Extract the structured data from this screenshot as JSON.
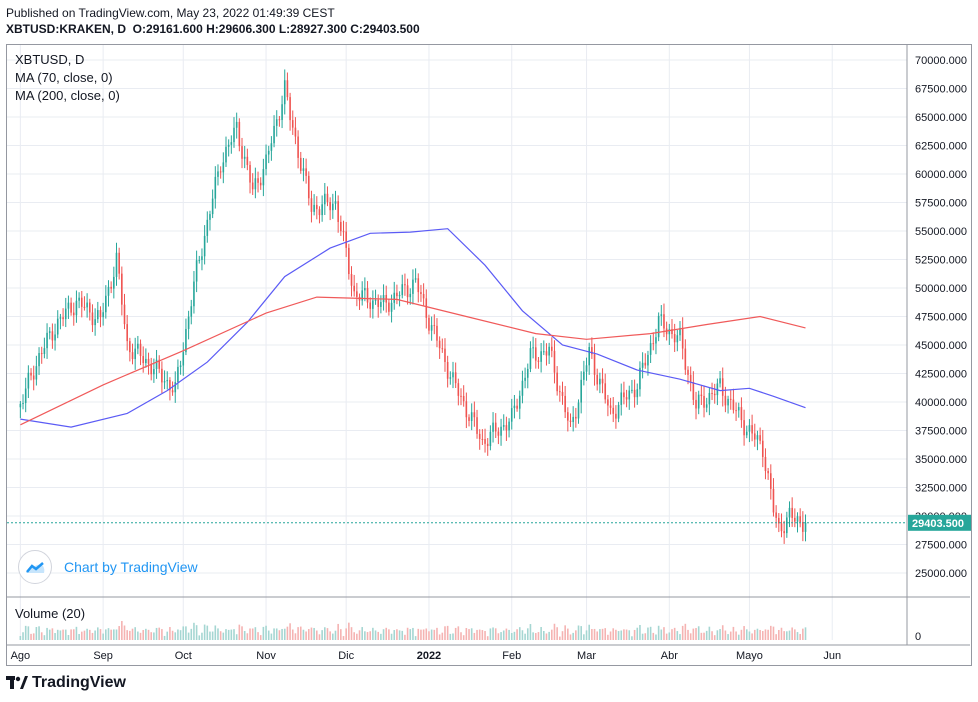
{
  "header": {
    "published": "Published on TradingView.com, May 23, 2022 01:49:39 CEST",
    "symbol_line": "XBTUSD:KRAKEN, D",
    "o_label": "O:",
    "o_value": "29161.600",
    "h_label": "H:",
    "h_value": "29606.300",
    "l_label": "L:",
    "l_value": "28927.300",
    "c_label": "C:",
    "c_value": "29403.500"
  },
  "legend": {
    "title": "XBTUSD, D",
    "ma1": "MA (70, close, 0)",
    "ma2": "MA (200, close, 0)"
  },
  "watermark": {
    "text": "Chart by TradingView"
  },
  "volume_label": "Volume (20)",
  "footer": {
    "brand": "TradingView"
  },
  "colors": {
    "up": "#26a69a",
    "down": "#ef5350",
    "ma70": "#5b5bf5",
    "ma200": "#f05a5a",
    "last_price": "#26a69a",
    "grid": "#e9ecf2"
  },
  "chart_data": {
    "type": "candlestick",
    "symbol": "XBTUSD",
    "interval": "D",
    "ylim": [
      25000,
      70000
    ],
    "yticks": [
      "70000.000",
      "67500.000",
      "65000.000",
      "62500.000",
      "60000.000",
      "57500.000",
      "55000.000",
      "52500.000",
      "50000.000",
      "47500.000",
      "45000.000",
      "42500.000",
      "40000.000",
      "37500.000",
      "35000.000",
      "32500.000",
      "30000.000",
      "27500.000",
      "25000.000"
    ],
    "xticks": [
      "Ago",
      "Sep",
      "Oct",
      "Nov",
      "Dic",
      "2022",
      "Feb",
      "Mar",
      "Abr",
      "Mayo",
      "Jun"
    ],
    "last_price": 29403.5,
    "last_price_label": "29403.500",
    "volume_tick": "0",
    "close_anchors": [
      [
        "2021-08-01",
        39800
      ],
      [
        "2021-08-08",
        44000
      ],
      [
        "2021-08-15",
        47000
      ],
      [
        "2021-08-22",
        48800
      ],
      [
        "2021-08-31",
        47200
      ],
      [
        "2021-09-06",
        52500
      ],
      [
        "2021-09-10",
        45000
      ],
      [
        "2021-09-20",
        43000
      ],
      [
        "2021-09-28",
        41000
      ],
      [
        "2021-10-06",
        51500
      ],
      [
        "2021-10-15",
        61000
      ],
      [
        "2021-10-21",
        64000
      ],
      [
        "2021-10-27",
        58500
      ],
      [
        "2021-11-01",
        61000
      ],
      [
        "2021-11-08",
        67500
      ],
      [
        "2021-11-10",
        65000
      ],
      [
        "2021-11-18",
        57000
      ],
      [
        "2021-11-27",
        57500
      ],
      [
        "2021-12-04",
        49500
      ],
      [
        "2021-12-15",
        48500
      ],
      [
        "2021-12-27",
        50500
      ],
      [
        "2022-01-01",
        47200
      ],
      [
        "2022-01-10",
        41800
      ],
      [
        "2022-01-21",
        36500
      ],
      [
        "2022-02-01",
        38500
      ],
      [
        "2022-02-08",
        44000
      ],
      [
        "2022-02-15",
        44500
      ],
      [
        "2022-02-23",
        37500
      ],
      [
        "2022-03-02",
        44400
      ],
      [
        "2022-03-10",
        39000
      ],
      [
        "2022-03-20",
        41500
      ],
      [
        "2022-03-28",
        47000
      ],
      [
        "2022-04-05",
        45500
      ],
      [
        "2022-04-11",
        39600
      ],
      [
        "2022-04-20",
        41300
      ],
      [
        "2022-04-30",
        37700
      ],
      [
        "2022-05-06",
        36000
      ],
      [
        "2022-05-10",
        30500
      ],
      [
        "2022-05-12",
        28900
      ],
      [
        "2022-05-16",
        29900
      ],
      [
        "2022-05-22",
        29403
      ]
    ],
    "series": [
      {
        "name": "MA (70, close, 0)",
        "values": [
          [
            "2021-08-01",
            38500
          ],
          [
            "2021-08-20",
            37800
          ],
          [
            "2021-09-10",
            39000
          ],
          [
            "2021-09-25",
            41000
          ],
          [
            "2021-10-10",
            43500
          ],
          [
            "2021-10-25",
            47000
          ],
          [
            "2021-11-08",
            51000
          ],
          [
            "2021-11-25",
            53500
          ],
          [
            "2021-12-10",
            54800
          ],
          [
            "2021-12-25",
            54900
          ],
          [
            "2022-01-08",
            55200
          ],
          [
            "2022-01-22",
            52000
          ],
          [
            "2022-02-05",
            48000
          ],
          [
            "2022-02-20",
            45000
          ],
          [
            "2022-03-05",
            44200
          ],
          [
            "2022-03-20",
            42800
          ],
          [
            "2022-04-05",
            42000
          ],
          [
            "2022-04-20",
            41000
          ],
          [
            "2022-05-01",
            41200
          ],
          [
            "2022-05-10",
            40500
          ],
          [
            "2022-05-22",
            39500
          ]
        ]
      },
      {
        "name": "MA (200, close, 0)",
        "values": [
          [
            "2021-08-01",
            38000
          ],
          [
            "2021-09-01",
            41500
          ],
          [
            "2021-10-01",
            44500
          ],
          [
            "2021-11-01",
            47800
          ],
          [
            "2021-11-20",
            49200
          ],
          [
            "2021-12-20",
            49000
          ],
          [
            "2022-01-15",
            47500
          ],
          [
            "2022-02-10",
            46000
          ],
          [
            "2022-03-01",
            45500
          ],
          [
            "2022-03-25",
            46000
          ],
          [
            "2022-04-15",
            46800
          ],
          [
            "2022-05-05",
            47500
          ],
          [
            "2022-05-22",
            46500
          ]
        ]
      }
    ]
  }
}
